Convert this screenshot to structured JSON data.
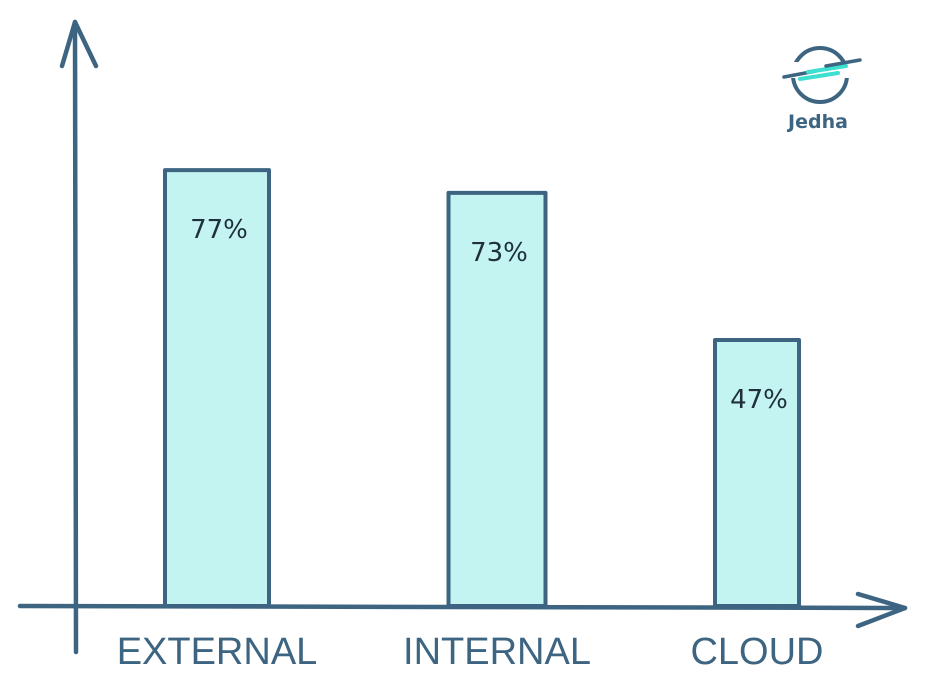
{
  "chart_data": {
    "type": "bar",
    "categories": [
      "EXTERNAL",
      "INTERNAL",
      "CLOUD"
    ],
    "values": [
      77,
      73,
      47
    ],
    "value_labels": [
      "77%",
      "73%",
      "47%"
    ],
    "title": "",
    "xlabel": "",
    "ylabel": "",
    "ylim": [
      0,
      100
    ],
    "grid": false,
    "colors": {
      "bar_fill": "#c3f4f2",
      "bar_stroke": "#3d6582",
      "axis": "#3d6582"
    }
  },
  "logo": {
    "text": "Jedha",
    "icon": "jedha-logo-icon",
    "accent": "#3de0d0"
  }
}
